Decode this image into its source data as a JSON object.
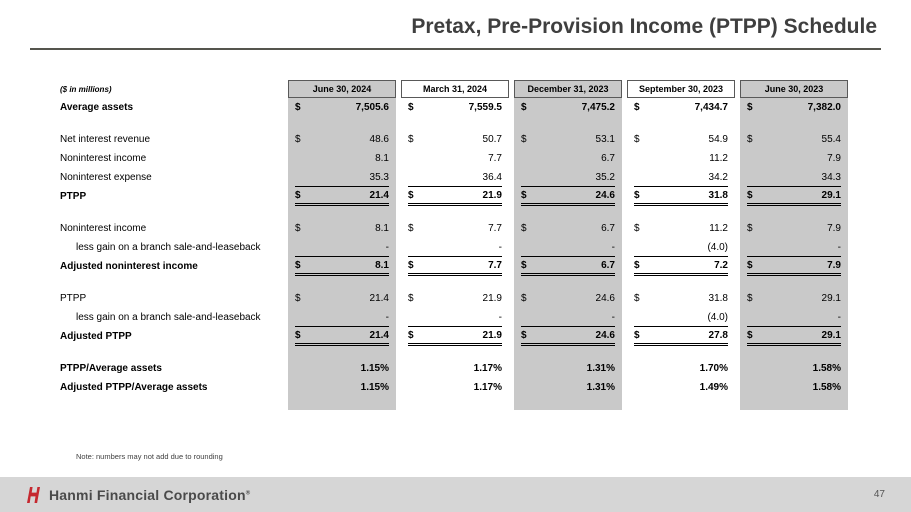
{
  "slide": {
    "title": "Pretax, Pre-Provision Income (PTPP) Schedule",
    "note": "Note: numbers may not add due to rounding",
    "brand": "Hanmi Financial Corporation",
    "brand_mark": "®",
    "page_number": "47"
  },
  "colors": {
    "shade": "#c9c9c9",
    "rule": "#55554e",
    "footer-bg": "#d6d6d6",
    "logo-red": "#c5282f"
  },
  "table": {
    "unit_label": "($ in millions)",
    "columns": [
      {
        "label": "June 30, 2024",
        "shaded": true
      },
      {
        "label": "March 31, 2024",
        "shaded": false
      },
      {
        "label": "December 31, 2023",
        "shaded": true
      },
      {
        "label": "September 30, 2023",
        "shaded": false
      },
      {
        "label": "June 30, 2023",
        "shaded": true
      }
    ],
    "rows": [
      {
        "label": "Average assets",
        "bold": true,
        "dollar": true,
        "indent": false,
        "underline": "none",
        "values": [
          "7,505.6",
          "7,559.5",
          "7,475.2",
          "7,434.7",
          "7,382.0"
        ]
      },
      {
        "type": "spacer"
      },
      {
        "label": "Net interest revenue",
        "bold": false,
        "dollar": true,
        "indent": false,
        "underline": "none",
        "values": [
          "48.6",
          "50.7",
          "53.1",
          "54.9",
          "55.4"
        ]
      },
      {
        "label": "Noninterest income",
        "bold": false,
        "dollar": false,
        "indent": false,
        "underline": "none",
        "values": [
          "8.1",
          "7.7",
          "6.7",
          "11.2",
          "7.9"
        ]
      },
      {
        "label": "Noninterest expense",
        "bold": false,
        "dollar": false,
        "indent": false,
        "underline": "single",
        "values": [
          "35.3",
          "36.4",
          "35.2",
          "34.2",
          "34.3"
        ]
      },
      {
        "label": "PTPP",
        "bold": true,
        "dollar": true,
        "indent": false,
        "underline": "double",
        "values": [
          "21.4",
          "21.9",
          "24.6",
          "31.8",
          "29.1"
        ]
      },
      {
        "type": "spacer"
      },
      {
        "label": "Noninterest income",
        "bold": false,
        "dollar": true,
        "indent": false,
        "underline": "none",
        "values": [
          "8.1",
          "7.7",
          "6.7",
          "11.2",
          "7.9"
        ]
      },
      {
        "label": "less gain on a branch sale-and-leaseback",
        "bold": false,
        "dollar": false,
        "indent": true,
        "underline": "single",
        "values": [
          "-",
          "-",
          "-",
          "(4.0)",
          "-"
        ]
      },
      {
        "label": "Adjusted noninterest income",
        "bold": true,
        "dollar": true,
        "indent": false,
        "underline": "double",
        "values": [
          "8.1",
          "7.7",
          "6.7",
          "7.2",
          "7.9"
        ]
      },
      {
        "type": "spacer"
      },
      {
        "label": "PTPP",
        "bold": false,
        "dollar": true,
        "indent": false,
        "underline": "none",
        "values": [
          "21.4",
          "21.9",
          "24.6",
          "31.8",
          "29.1"
        ]
      },
      {
        "label": "less gain on a branch sale-and-leaseback",
        "bold": false,
        "dollar": false,
        "indent": true,
        "underline": "single",
        "values": [
          "-",
          "-",
          "-",
          "(4.0)",
          "-"
        ]
      },
      {
        "label": "Adjusted PTPP",
        "bold": true,
        "dollar": true,
        "indent": false,
        "underline": "double",
        "values": [
          "21.4",
          "21.9",
          "24.6",
          "27.8",
          "29.1"
        ]
      },
      {
        "type": "spacer"
      },
      {
        "label": "PTPP/Average assets",
        "bold": true,
        "dollar": false,
        "indent": false,
        "underline": "none",
        "values": [
          "1.15%",
          "1.17%",
          "1.31%",
          "1.70%",
          "1.58%"
        ]
      },
      {
        "label": "Adjusted PTPP/Average assets",
        "bold": true,
        "dollar": false,
        "indent": false,
        "underline": "none",
        "values": [
          "1.15%",
          "1.17%",
          "1.31%",
          "1.49%",
          "1.58%"
        ]
      }
    ]
  }
}
